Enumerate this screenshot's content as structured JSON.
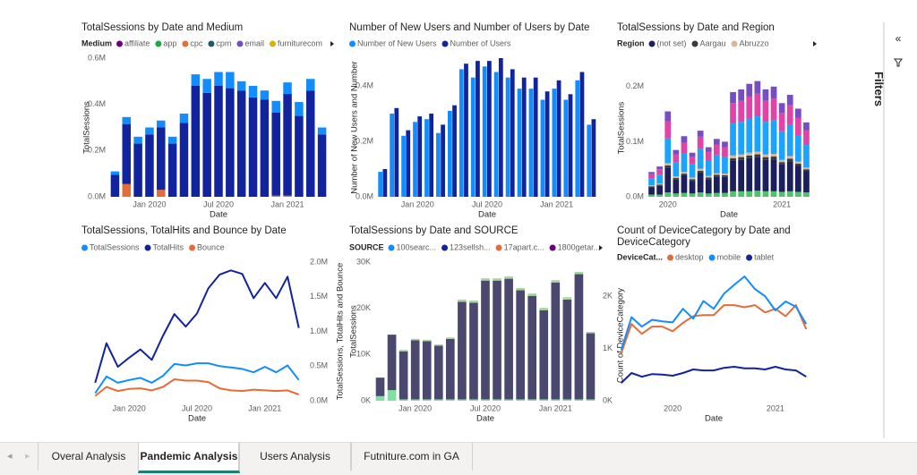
{
  "chart_data": [
    {
      "type": "bar",
      "barmode": "stack",
      "title": "TotalSessions by Date and Medium",
      "legend_title": "Medium",
      "legend": [
        {
          "name": "affiliate",
          "color": "#6b007b"
        },
        {
          "name": "app",
          "color": "#1aab40"
        },
        {
          "name": "cpc",
          "color": "#e66c37"
        },
        {
          "name": "cpm",
          "color": "#1c5e68"
        },
        {
          "name": "email",
          "color": "#744ec2"
        },
        {
          "name": "furniturecom",
          "color": "#d9b300"
        }
      ],
      "x_label": "Date",
      "y_label": "TotalSessions",
      "categories": [
        null,
        null,
        null,
        "Jan 2020",
        null,
        null,
        null,
        null,
        null,
        "Jul 2020",
        null,
        null,
        null,
        null,
        null,
        "Jan 2021",
        null,
        null,
        null
      ],
      "series": [
        {
          "color": "#e66c37",
          "values": [
            0,
            55000,
            0,
            0,
            30000,
            0,
            0,
            0,
            0,
            0,
            0,
            0,
            0,
            0,
            5000,
            5000,
            0,
            0,
            0
          ]
        },
        {
          "color": "#12239e",
          "values": [
            95000,
            260000,
            230000,
            270000,
            270000,
            230000,
            320000,
            480000,
            450000,
            480000,
            470000,
            460000,
            430000,
            420000,
            360000,
            440000,
            350000,
            460000,
            270000
          ]
        },
        {
          "color": "#118dff",
          "values": [
            15000,
            30000,
            30000,
            30000,
            30000,
            30000,
            40000,
            50000,
            60000,
            60000,
            70000,
            40000,
            50000,
            40000,
            50000,
            50000,
            60000,
            50000,
            30000
          ]
        }
      ],
      "ylim": [
        0,
        600000
      ],
      "yticks": [
        {
          "value": 0,
          "label": "0.0M"
        },
        {
          "value": 200000,
          "label": "0.2M"
        },
        {
          "value": 400000,
          "label": "0.4M"
        },
        {
          "value": 600000,
          "label": "0.6M"
        }
      ],
      "grid": false
    },
    {
      "type": "bar",
      "barmode": "group",
      "title": "Number of New Users and Number of Users by Date",
      "x_label": "Date",
      "y_label": "Number of New Users and Number",
      "categories": [
        null,
        null,
        null,
        "Jan 2020",
        null,
        null,
        null,
        null,
        null,
        "Jul 2020",
        null,
        null,
        null,
        null,
        null,
        "Jan 2021",
        null,
        null,
        null
      ],
      "series": [
        {
          "name": "Number of New Users",
          "color": "#118dff",
          "values": [
            90000,
            300000,
            220000,
            270000,
            280000,
            230000,
            310000,
            460000,
            430000,
            470000,
            450000,
            430000,
            390000,
            390000,
            350000,
            390000,
            350000,
            420000,
            260000
          ]
        },
        {
          "name": "Number of Users",
          "color": "#12239e",
          "values": [
            100000,
            320000,
            240000,
            290000,
            300000,
            260000,
            330000,
            480000,
            490000,
            490000,
            500000,
            460000,
            430000,
            430000,
            380000,
            420000,
            370000,
            450000,
            280000
          ]
        }
      ],
      "ylim": [
        0,
        500000
      ],
      "yticks": [
        {
          "value": 0,
          "label": "0.0M"
        },
        {
          "value": 200000,
          "label": "0.2M"
        },
        {
          "value": 400000,
          "label": "0.4M"
        }
      ],
      "grid": false
    },
    {
      "type": "bar",
      "barmode": "stack",
      "title": "TotalSessions by Date and Region",
      "legend_title": "Region",
      "legend": [
        {
          "name": "(not set)",
          "color": "#1b1f5e"
        },
        {
          "name": "Aargau",
          "color": "#3a3a3a"
        },
        {
          "name": "Abruzzo",
          "color": "#d9b79a"
        }
      ],
      "x_label": "Date",
      "y_label": "TotalSessions",
      "categories": [
        null,
        null,
        "2020",
        null,
        null,
        null,
        null,
        null,
        null,
        null,
        null,
        null,
        null,
        null,
        null,
        null,
        "2021",
        null,
        null,
        null
      ],
      "series": [
        {
          "color": "#4ec36b",
          "values": [
            4000,
            4000,
            8000,
            6000,
            7000,
            6000,
            8000,
            6000,
            7000,
            7000,
            10000,
            10000,
            10000,
            11000,
            10000,
            10000,
            9000,
            10000,
            9000,
            8000
          ]
        },
        {
          "color": "#1b1f5e",
          "values": [
            13000,
            16000,
            45000,
            25000,
            32000,
            23000,
            35000,
            26000,
            30000,
            29000,
            55000,
            57000,
            60000,
            61000,
            57000,
            58000,
            50000,
            54000,
            47000,
            39000
          ]
        },
        {
          "color": "#3a3a3a",
          "values": [
            2000,
            2000,
            4000,
            3000,
            3000,
            3000,
            4000,
            3000,
            3000,
            3000,
            5000,
            5000,
            5000,
            5000,
            5000,
            5000,
            4000,
            5000,
            4000,
            3000
          ]
        },
        {
          "color": "#d9b79a",
          "values": [
            2000,
            2000,
            4000,
            3000,
            3000,
            3000,
            4000,
            3000,
            3000,
            3000,
            5000,
            5000,
            5000,
            5000,
            5000,
            5000,
            4000,
            5000,
            4000,
            3000
          ]
        },
        {
          "color": "#1aa3ff",
          "values": [
            12000,
            16000,
            45000,
            25000,
            33000,
            24000,
            36000,
            27000,
            32000,
            30000,
            58000,
            59000,
            62000,
            64000,
            59000,
            61000,
            52000,
            56000,
            48000,
            41000
          ]
        },
        {
          "color": "#e044a7",
          "values": [
            8000,
            10000,
            31000,
            15000,
            20000,
            14000,
            22000,
            17000,
            20000,
            18000,
            37000,
            38000,
            40000,
            41000,
            38000,
            39000,
            33000,
            36000,
            31000,
            27000
          ]
        },
        {
          "color": "#744ec2",
          "values": [
            4000,
            5000,
            18000,
            8000,
            12000,
            7000,
            11000,
            8000,
            10000,
            10000,
            20000,
            21000,
            23000,
            23000,
            21000,
            22000,
            18000,
            19000,
            17000,
            14000
          ]
        }
      ],
      "ylim": [
        0,
        250000
      ],
      "yticks": [
        {
          "value": 0,
          "label": "0.0M"
        },
        {
          "value": 100000,
          "label": "0.1M"
        },
        {
          "value": 200000,
          "label": "0.2M"
        }
      ],
      "grid": false
    },
    {
      "type": "line",
      "title": "TotalSessions, TotalHits and Bounce by Date",
      "y_axis_side": "right",
      "x_label": "Date",
      "y_label": "TotalSessions, TotalHits and Bounce",
      "categories": [
        null,
        null,
        null,
        "Jan 2020",
        null,
        null,
        null,
        null,
        null,
        "Jul 2020",
        null,
        null,
        null,
        null,
        null,
        "Jan 2021",
        null,
        null,
        null
      ],
      "series": [
        {
          "name": "TotalSessions",
          "color": "#118dff",
          "values": [
            110000,
            350000,
            260000,
            300000,
            330000,
            260000,
            360000,
            530000,
            510000,
            540000,
            540000,
            500000,
            480000,
            460000,
            410000,
            490000,
            410000,
            510000,
            300000
          ]
        },
        {
          "name": "TotalHits",
          "color": "#12239e",
          "values": [
            260000,
            830000,
            490000,
            620000,
            740000,
            590000,
            940000,
            1250000,
            1070000,
            1260000,
            1620000,
            1820000,
            1880000,
            1830000,
            1480000,
            1700000,
            1480000,
            1790000,
            1050000
          ]
        },
        {
          "name": "Bounce",
          "color": "#e66c37",
          "values": [
            70000,
            200000,
            140000,
            170000,
            180000,
            150000,
            200000,
            310000,
            290000,
            290000,
            270000,
            180000,
            150000,
            140000,
            160000,
            150000,
            140000,
            150000,
            90000
          ]
        }
      ],
      "ylim": [
        0,
        2000000
      ],
      "yticks": [
        {
          "value": 0,
          "label": "0.0M"
        },
        {
          "value": 500000,
          "label": "0.5M"
        },
        {
          "value": 1000000,
          "label": "1.0M"
        },
        {
          "value": 1500000,
          "label": "1.5M"
        },
        {
          "value": 2000000,
          "label": "2.0M"
        }
      ],
      "grid": false
    },
    {
      "type": "bar",
      "barmode": "stack",
      "title": "TotalSessions by Date and SOURCE",
      "legend_title": "SOURCE",
      "legend": [
        {
          "name": "100searc...",
          "color": "#118dff"
        },
        {
          "name": "123sellsh...",
          "color": "#12239e"
        },
        {
          "name": "17apart.c...",
          "color": "#e66c37"
        },
        {
          "name": "1800getar...",
          "color": "#6b007b"
        }
      ],
      "x_label": "Date",
      "y_label": "TotalSessions",
      "categories": [
        null,
        null,
        null,
        "Jan 2020",
        null,
        null,
        null,
        null,
        null,
        "Jul 2020",
        null,
        null,
        null,
        null,
        null,
        "Jan 2021",
        null,
        null,
        null
      ],
      "series": [
        {
          "color": "#7de0a0",
          "values": [
            1000,
            2300,
            300,
            300,
            300,
            300,
            300,
            300,
            300,
            300,
            300,
            300,
            300,
            300,
            300,
            300,
            300,
            300,
            300
          ]
        },
        {
          "color": "#4b4870",
          "values": [
            4000,
            12000,
            10400,
            12800,
            12600,
            11600,
            13100,
            21100,
            20900,
            25700,
            25700,
            26100,
            23600,
            22400,
            19300,
            25300,
            21600,
            27100,
            14300
          ]
        },
        {
          "color": "#a4d89c",
          "values": [
            0,
            0,
            300,
            300,
            300,
            300,
            300,
            500,
            500,
            500,
            500,
            500,
            500,
            500,
            500,
            500,
            500,
            500,
            300
          ]
        }
      ],
      "ylim": [
        0,
        30000
      ],
      "yticks": [
        {
          "value": 0,
          "label": "0K"
        },
        {
          "value": 10000,
          "label": "10K"
        },
        {
          "value": 20000,
          "label": "20K"
        },
        {
          "value": 30000,
          "label": "30K"
        }
      ],
      "grid": false
    },
    {
      "type": "line",
      "title": "Count of DeviceCategory by Date and DeviceCategory",
      "legend_title": "DeviceCat...",
      "x_label": "Date",
      "y_label": "Count of DeviceCategory",
      "categories": [
        null,
        null,
        null,
        null,
        null,
        "2020",
        null,
        null,
        null,
        null,
        null,
        null,
        null,
        null,
        null,
        "2021",
        null,
        null,
        null
      ],
      "series": [
        {
          "name": "desktop",
          "color": "#e66c37",
          "values": [
            910,
            1470,
            1280,
            1420,
            1420,
            1330,
            1490,
            1620,
            1640,
            1640,
            1830,
            1830,
            1790,
            1830,
            1690,
            1760,
            1620,
            1830,
            1370
          ]
        },
        {
          "name": "mobile",
          "color": "#118dff",
          "values": [
            970,
            1600,
            1420,
            1550,
            1520,
            1500,
            1760,
            1570,
            1910,
            1760,
            2050,
            2220,
            2380,
            2140,
            2000,
            1730,
            1900,
            1800,
            1470
          ]
        },
        {
          "name": "tablet",
          "color": "#12239e",
          "values": [
            340,
            530,
            460,
            510,
            500,
            480,
            530,
            600,
            580,
            580,
            630,
            650,
            620,
            620,
            600,
            650,
            600,
            580,
            460
          ]
        }
      ],
      "ylim": [
        0,
        2500
      ],
      "yticks": [
        {
          "value": 0,
          "label": "0K"
        },
        {
          "value": 1000,
          "label": "1K"
        },
        {
          "value": 2000,
          "label": "2K"
        }
      ],
      "grid": false
    }
  ],
  "filters_label": "Filters",
  "tabs": [
    "Overal Analysis",
    "Pandemic Analysis",
    "Users Analysis",
    "Futniture.com in GA"
  ],
  "active_tab": 1
}
